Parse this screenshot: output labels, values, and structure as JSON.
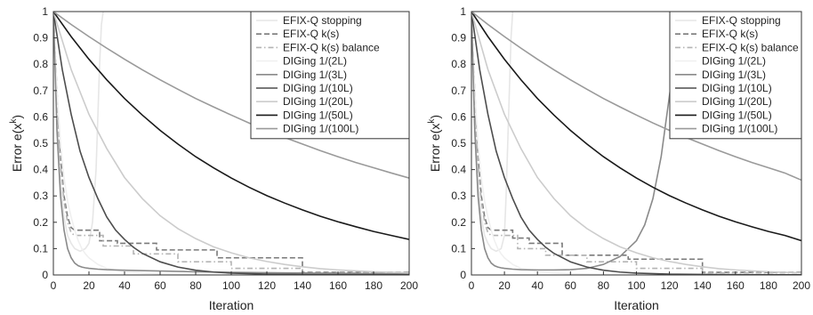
{
  "chart_data": [
    {
      "type": "line",
      "panel": "left",
      "xlabel": "Iteration",
      "ylabel_base": "Error e(x",
      "ylabel_sup": "k",
      "ylabel_close": ")",
      "xlim": [
        0,
        200
      ],
      "ylim": [
        0,
        1
      ],
      "xticks": [
        0,
        20,
        40,
        60,
        80,
        100,
        120,
        140,
        160,
        180,
        200
      ],
      "yticks": [
        0,
        0.1,
        0.2,
        0.3,
        0.4,
        0.5,
        0.6,
        0.7,
        0.8,
        0.9,
        1
      ],
      "grid": false,
      "legend_position": "top-right",
      "series": [
        {
          "name": "EFIX-Q stopping",
          "color": "#e6e6e6",
          "style": "solid",
          "x": [
            0,
            2,
            4,
            6,
            8,
            10,
            12,
            15,
            18,
            20,
            22,
            24,
            25,
            26,
            27,
            28
          ],
          "y": [
            1,
            0.6,
            0.35,
            0.22,
            0.15,
            0.12,
            0.1,
            0.09,
            0.1,
            0.12,
            0.2,
            0.4,
            0.6,
            0.8,
            0.95,
            1
          ]
        },
        {
          "name": "EFIX-Q k(s)",
          "color": "#7a7a7a",
          "style": "dashed",
          "x": [
            0,
            2,
            4,
            6,
            8,
            10,
            12,
            14,
            15,
            15,
            26,
            26,
            36,
            36,
            58,
            58,
            92,
            92,
            140,
            140,
            200
          ],
          "y": [
            1,
            0.7,
            0.45,
            0.3,
            0.22,
            0.18,
            0.17,
            0.17,
            0.17,
            0.17,
            0.17,
            0.13,
            0.13,
            0.12,
            0.12,
            0.095,
            0.095,
            0.065,
            0.065,
            0.01,
            0.01
          ]
        },
        {
          "name": "EFIX-Q k(s) balance",
          "color": "#b4b4b4",
          "style": "dashdot",
          "x": [
            0,
            2,
            4,
            6,
            8,
            10,
            12,
            14,
            15,
            15,
            28,
            28,
            45,
            45,
            70,
            70,
            100,
            100,
            140,
            140,
            200
          ],
          "y": [
            1,
            0.65,
            0.42,
            0.28,
            0.2,
            0.16,
            0.15,
            0.15,
            0.15,
            0.15,
            0.15,
            0.11,
            0.11,
            0.08,
            0.08,
            0.05,
            0.05,
            0.025,
            0.025,
            0.008,
            0.008
          ]
        },
        {
          "name": "DIGing 1/(2L)",
          "color": "#f0f0f0",
          "style": "solid",
          "x": [
            0,
            2,
            4,
            6,
            8,
            10,
            12,
            14,
            16,
            18,
            20,
            25,
            30,
            40,
            60,
            80,
            100,
            130,
            160,
            200
          ],
          "y": [
            1,
            0.7,
            0.5,
            0.37,
            0.28,
            0.22,
            0.17,
            0.13,
            0.1,
            0.08,
            0.065,
            0.04,
            0.025,
            0.012,
            0.004,
            0.002,
            0.001,
            0.0005,
            0.0003,
            0.0001
          ]
        },
        {
          "name": "DIGing 1/(3L)",
          "color": "#8a8a8a",
          "style": "solid",
          "x": [
            0,
            2,
            4,
            6,
            8,
            10,
            12,
            14,
            16,
            18,
            20,
            25,
            30,
            40,
            60,
            80,
            100,
            130,
            160,
            200
          ],
          "y": [
            1,
            0.55,
            0.3,
            0.17,
            0.1,
            0.065,
            0.045,
            0.035,
            0.03,
            0.027,
            0.025,
            0.022,
            0.02,
            0.018,
            0.015,
            0.012,
            0.01,
            0.008,
            0.006,
            0.004
          ]
        },
        {
          "name": "DIGing 1/(10L)",
          "color": "#4d4d4d",
          "style": "solid",
          "x": [
            0,
            5,
            10,
            15,
            20,
            25,
            30,
            35,
            40,
            45,
            50,
            60,
            70,
            80,
            90,
            100,
            120,
            140,
            160,
            200
          ],
          "y": [
            1,
            0.78,
            0.61,
            0.47,
            0.37,
            0.29,
            0.22,
            0.17,
            0.135,
            0.105,
            0.082,
            0.05,
            0.03,
            0.018,
            0.011,
            0.007,
            0.003,
            0.002,
            0.001,
            0.0005
          ]
        },
        {
          "name": "DIGing 1/(20L)",
          "color": "#cccccc",
          "style": "solid",
          "x": [
            0,
            10,
            20,
            30,
            40,
            50,
            60,
            70,
            80,
            90,
            100,
            110,
            120,
            130,
            140,
            150,
            160,
            180,
            200
          ],
          "y": [
            1,
            0.78,
            0.61,
            0.48,
            0.37,
            0.29,
            0.225,
            0.176,
            0.138,
            0.107,
            0.084,
            0.065,
            0.051,
            0.04,
            0.031,
            0.024,
            0.019,
            0.012,
            0.008
          ]
        },
        {
          "name": "DIGing 1/(50L)",
          "color": "#1a1a1a",
          "style": "solid",
          "x": [
            0,
            10,
            20,
            30,
            40,
            50,
            60,
            70,
            80,
            90,
            100,
            110,
            120,
            130,
            140,
            150,
            160,
            170,
            180,
            190,
            200
          ],
          "y": [
            1,
            0.905,
            0.819,
            0.741,
            0.67,
            0.607,
            0.549,
            0.497,
            0.449,
            0.407,
            0.368,
            0.333,
            0.301,
            0.273,
            0.247,
            0.223,
            0.202,
            0.183,
            0.165,
            0.15,
            0.135
          ]
        },
        {
          "name": "DIGing 1/(100L)",
          "color": "#9a9a9a",
          "style": "solid",
          "x": [
            0,
            10,
            20,
            30,
            40,
            50,
            60,
            70,
            80,
            90,
            100,
            110,
            120,
            130,
            140,
            150,
            160,
            170,
            180,
            190,
            200
          ],
          "y": [
            1,
            0.951,
            0.905,
            0.861,
            0.819,
            0.779,
            0.741,
            0.705,
            0.67,
            0.638,
            0.607,
            0.577,
            0.549,
            0.522,
            0.497,
            0.472,
            0.449,
            0.427,
            0.407,
            0.387,
            0.368
          ]
        }
      ]
    },
    {
      "type": "line",
      "panel": "right",
      "xlabel": "Iteration",
      "ylabel_base": "Error e(x",
      "ylabel_sup": "k",
      "ylabel_close": ")",
      "xlim": [
        0,
        200
      ],
      "ylim": [
        0,
        1
      ],
      "xticks": [
        0,
        20,
        40,
        60,
        80,
        100,
        120,
        140,
        160,
        180,
        200
      ],
      "yticks": [
        0,
        0.1,
        0.2,
        0.3,
        0.4,
        0.5,
        0.6,
        0.7,
        0.8,
        0.9,
        1
      ],
      "grid": false,
      "legend_position": "top-right",
      "series": [
        {
          "name": "EFIX-Q stopping",
          "color": "#e6e6e6",
          "style": "solid",
          "x": [
            0,
            2,
            4,
            6,
            8,
            10,
            12,
            15,
            18,
            20,
            21,
            22,
            23,
            24,
            25
          ],
          "y": [
            1,
            0.6,
            0.35,
            0.22,
            0.15,
            0.12,
            0.1,
            0.09,
            0.1,
            0.15,
            0.3,
            0.5,
            0.7,
            0.9,
            1
          ]
        },
        {
          "name": "EFIX-Q k(s)",
          "color": "#7a7a7a",
          "style": "dashed",
          "x": [
            0,
            2,
            4,
            6,
            8,
            10,
            12,
            14,
            15,
            15,
            25,
            25,
            35,
            35,
            55,
            55,
            95,
            95,
            140,
            140,
            200
          ],
          "y": [
            1,
            0.7,
            0.45,
            0.3,
            0.22,
            0.18,
            0.17,
            0.17,
            0.17,
            0.17,
            0.17,
            0.14,
            0.14,
            0.12,
            0.12,
            0.075,
            0.075,
            0.06,
            0.06,
            0.01,
            0.01
          ]
        },
        {
          "name": "EFIX-Q k(s) balance",
          "color": "#b4b4b4",
          "style": "dashdot",
          "x": [
            0,
            2,
            4,
            6,
            8,
            10,
            12,
            14,
            15,
            15,
            28,
            28,
            45,
            45,
            70,
            70,
            100,
            100,
            140,
            140,
            200
          ],
          "y": [
            1,
            0.65,
            0.42,
            0.28,
            0.2,
            0.16,
            0.15,
            0.15,
            0.15,
            0.15,
            0.15,
            0.1,
            0.1,
            0.075,
            0.075,
            0.05,
            0.05,
            0.025,
            0.025,
            0.008,
            0.008
          ]
        },
        {
          "name": "DIGing 1/(2L)",
          "color": "#f0f0f0",
          "style": "solid",
          "x": [
            0,
            2,
            4,
            6,
            8,
            10,
            12,
            14,
            16,
            18,
            20,
            25,
            30,
            40,
            60,
            80,
            100,
            130,
            160,
            200
          ],
          "y": [
            1,
            0.7,
            0.5,
            0.37,
            0.28,
            0.22,
            0.17,
            0.13,
            0.1,
            0.08,
            0.065,
            0.04,
            0.025,
            0.012,
            0.004,
            0.002,
            0.001,
            0.0005,
            0.0003,
            0.0001
          ]
        },
        {
          "name": "DIGing 1/(3L)",
          "color": "#8a8a8a",
          "style": "solid",
          "x": [
            0,
            2,
            4,
            6,
            8,
            10,
            12,
            14,
            16,
            18,
            20,
            25,
            30,
            40,
            50,
            60,
            70,
            80,
            90,
            100,
            105,
            110,
            115,
            120,
            125,
            128
          ],
          "y": [
            1,
            0.55,
            0.3,
            0.17,
            0.1,
            0.065,
            0.045,
            0.035,
            0.03,
            0.027,
            0.025,
            0.022,
            0.02,
            0.019,
            0.019,
            0.02,
            0.025,
            0.04,
            0.07,
            0.13,
            0.19,
            0.29,
            0.45,
            0.68,
            0.9,
            1
          ]
        },
        {
          "name": "DIGing 1/(10L)",
          "color": "#4d4d4d",
          "style": "solid",
          "x": [
            0,
            5,
            10,
            15,
            20,
            25,
            30,
            35,
            40,
            45,
            50,
            60,
            70,
            80,
            90,
            100,
            120,
            140,
            160,
            200
          ],
          "y": [
            1,
            0.78,
            0.61,
            0.47,
            0.37,
            0.29,
            0.22,
            0.17,
            0.135,
            0.105,
            0.082,
            0.05,
            0.03,
            0.018,
            0.011,
            0.007,
            0.003,
            0.002,
            0.001,
            0.0005
          ]
        },
        {
          "name": "DIGing 1/(20L)",
          "color": "#cccccc",
          "style": "solid",
          "x": [
            0,
            10,
            20,
            30,
            40,
            50,
            60,
            70,
            80,
            90,
            100,
            110,
            120,
            130,
            140,
            150,
            160,
            180,
            200
          ],
          "y": [
            1,
            0.78,
            0.61,
            0.48,
            0.37,
            0.29,
            0.225,
            0.176,
            0.138,
            0.107,
            0.084,
            0.065,
            0.051,
            0.04,
            0.031,
            0.024,
            0.019,
            0.012,
            0.008
          ]
        },
        {
          "name": "DIGing 1/(50L)",
          "color": "#1a1a1a",
          "style": "solid",
          "x": [
            0,
            10,
            20,
            30,
            40,
            50,
            60,
            70,
            80,
            90,
            100,
            110,
            120,
            130,
            140,
            150,
            160,
            170,
            180,
            190,
            200
          ],
          "y": [
            1,
            0.905,
            0.819,
            0.741,
            0.67,
            0.607,
            0.549,
            0.497,
            0.449,
            0.407,
            0.368,
            0.333,
            0.301,
            0.273,
            0.247,
            0.223,
            0.202,
            0.183,
            0.165,
            0.15,
            0.13
          ]
        },
        {
          "name": "DIGing 1/(100L)",
          "color": "#9a9a9a",
          "style": "solid",
          "x": [
            0,
            10,
            20,
            30,
            40,
            50,
            60,
            70,
            80,
            90,
            100,
            110,
            120,
            130,
            140,
            150,
            160,
            170,
            180,
            190,
            200
          ],
          "y": [
            1,
            0.951,
            0.905,
            0.861,
            0.819,
            0.779,
            0.741,
            0.705,
            0.67,
            0.638,
            0.607,
            0.577,
            0.549,
            0.522,
            0.497,
            0.472,
            0.449,
            0.427,
            0.407,
            0.387,
            0.36
          ]
        }
      ]
    }
  ]
}
